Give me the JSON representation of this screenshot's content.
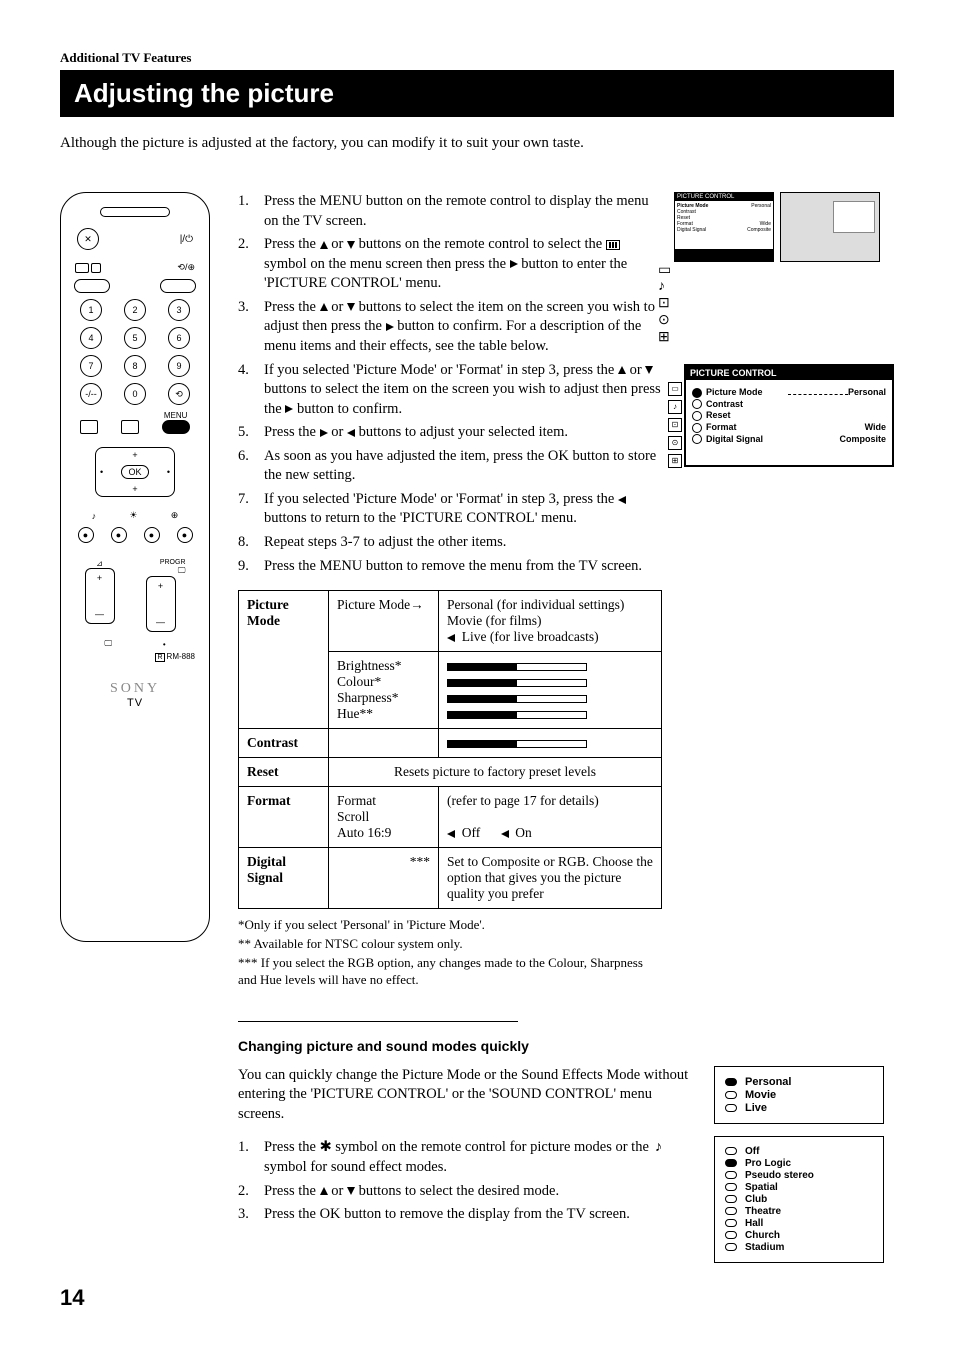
{
  "section_label": "Additional TV Features",
  "title": "Adjusting the picture",
  "intro": "Although the picture is adjusted at the factory, you can modify it to suit your own taste.",
  "remote": {
    "brand": "SONY",
    "tv": "TV",
    "model": "RM-888",
    "menu": "MENU",
    "ok": "OK",
    "progr": "PROGR"
  },
  "steps": [
    {
      "n": "1.",
      "t": "Press the MENU button on the remote control to display the menu on the TV screen."
    },
    {
      "n": "2.",
      "t": "Press the ↑ or ↓ buttons on the remote control to select the ▭ symbol on the menu screen then press the → button to enter the 'PICTURE CONTROL' menu."
    },
    {
      "n": "3.",
      "t": "Press the ↑ or ↓ buttons to select the item on the screen you wish to adjust then press the → button to confirm. For a description of the menu items and their effects, see the table below."
    },
    {
      "n": "4.",
      "t": "If you selected 'Picture Mode' or 'Format' in step 3, press the ↑ or ↓ buttons to select the item on the screen you wish to adjust then press the → button to confirm."
    },
    {
      "n": "5.",
      "t": "Press the → or ← buttons to adjust your selected item."
    },
    {
      "n": "6.",
      "t": "As soon as you have adjusted the item, press the OK button to store the new setting."
    },
    {
      "n": "7.",
      "t": "If you selected 'Picture Mode' or 'Format' in step 3, press the ← buttons to return to the 'PICTURE CONTROL' menu."
    },
    {
      "n": "8.",
      "t": "Repeat steps 3-7 to adjust the other items."
    },
    {
      "n": "9.",
      "t": "Press the MENU button to remove the menu from the TV screen."
    }
  ],
  "menu": {
    "header": "PICTURE CONTROL",
    "items": [
      {
        "label": "Picture Mode",
        "value": "Personal",
        "sel": true,
        "dashed": true
      },
      {
        "label": "Contrast",
        "value": ""
      },
      {
        "label": "Reset",
        "value": ""
      },
      {
        "label": "Format",
        "value": "Wide"
      },
      {
        "label": "Digital Signal",
        "value": "Composite"
      }
    ]
  },
  "table": {
    "picture_mode": {
      "label": "Picture Mode",
      "sub": "Picture Mode→",
      "opts": [
        "Personal (for individual settings)",
        "Movie (for films)",
        "Live (for live broadcasts)"
      ],
      "sliders": [
        "Brightness*",
        "Colour*",
        "Sharpness*",
        "Hue**"
      ]
    },
    "contrast": {
      "label": "Contrast"
    },
    "reset": {
      "label": "Reset",
      "text": "Resets picture to factory preset levels"
    },
    "format": {
      "label": "Format",
      "sub1": "Format",
      "sub1_text": "(refer to page 17 for details)",
      "sub2": "Scroll",
      "sub3": "Auto 16:9",
      "off": "Off",
      "on": "On"
    },
    "digital": {
      "label": "Digital Signal",
      "stars": "***",
      "text": "Set to Composite or RGB. Choose the option that gives you the picture quality you prefer"
    }
  },
  "footnotes": [
    "*Only if you select 'Personal' in 'Picture Mode'.",
    "** Available for NTSC colour system only.",
    "*** If you select the RGB option, any changes made to the Colour, Sharpness and Hue levels will have no effect."
  ],
  "quick": {
    "heading": "Changing picture and sound modes quickly",
    "intro": "You can quickly change the Picture Mode or the Sound Effects Mode without entering the 'PICTURE CONTROL' or the 'SOUND CONTROL' menu screens.",
    "steps": [
      {
        "n": "1.",
        "t": "Press the ✱ symbol on the remote control for picture modes or the ♪ symbol for sound effect modes."
      },
      {
        "n": "2.",
        "t": "Press the ↑ or ↓ buttons to select the desired mode."
      },
      {
        "n": "3.",
        "t": "Press the OK button to remove the display from the TV screen."
      }
    ],
    "picture_modes": [
      {
        "label": "Personal",
        "filled": true
      },
      {
        "label": "Movie",
        "filled": false
      },
      {
        "label": "Live",
        "filled": false
      }
    ],
    "sound_modes": [
      {
        "label": "Off",
        "filled": false
      },
      {
        "label": "Pro Logic",
        "filled": true
      },
      {
        "label": "Pseudo stereo",
        "filled": false
      },
      {
        "label": "Spatial",
        "filled": false
      },
      {
        "label": "Club",
        "filled": false
      },
      {
        "label": "Theatre",
        "filled": false
      },
      {
        "label": "Hall",
        "filled": false
      },
      {
        "label": "Church",
        "filled": false
      },
      {
        "label": "Stadium",
        "filled": false
      }
    ]
  },
  "page": "14"
}
